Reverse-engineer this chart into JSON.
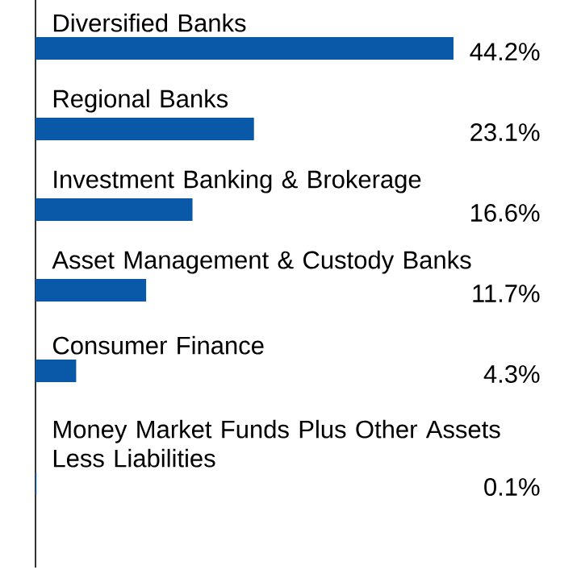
{
  "chart_data": {
    "type": "bar",
    "orientation": "horizontal",
    "categories": [
      "Diversified Banks",
      "Regional Banks",
      "Investment Banking & Brokerage",
      "Asset Management & Custody Banks",
      "Consumer Finance",
      "Money Market Funds Plus Other Assets Less Liabilities"
    ],
    "values": [
      44.2,
      23.1,
      16.6,
      11.7,
      4.3,
      0.1
    ],
    "value_labels": [
      "44.2%",
      "23.1%",
      "16.6%",
      "11.7%",
      "4.3%",
      "0.1%"
    ],
    "color": "#0a58a8"
  }
}
